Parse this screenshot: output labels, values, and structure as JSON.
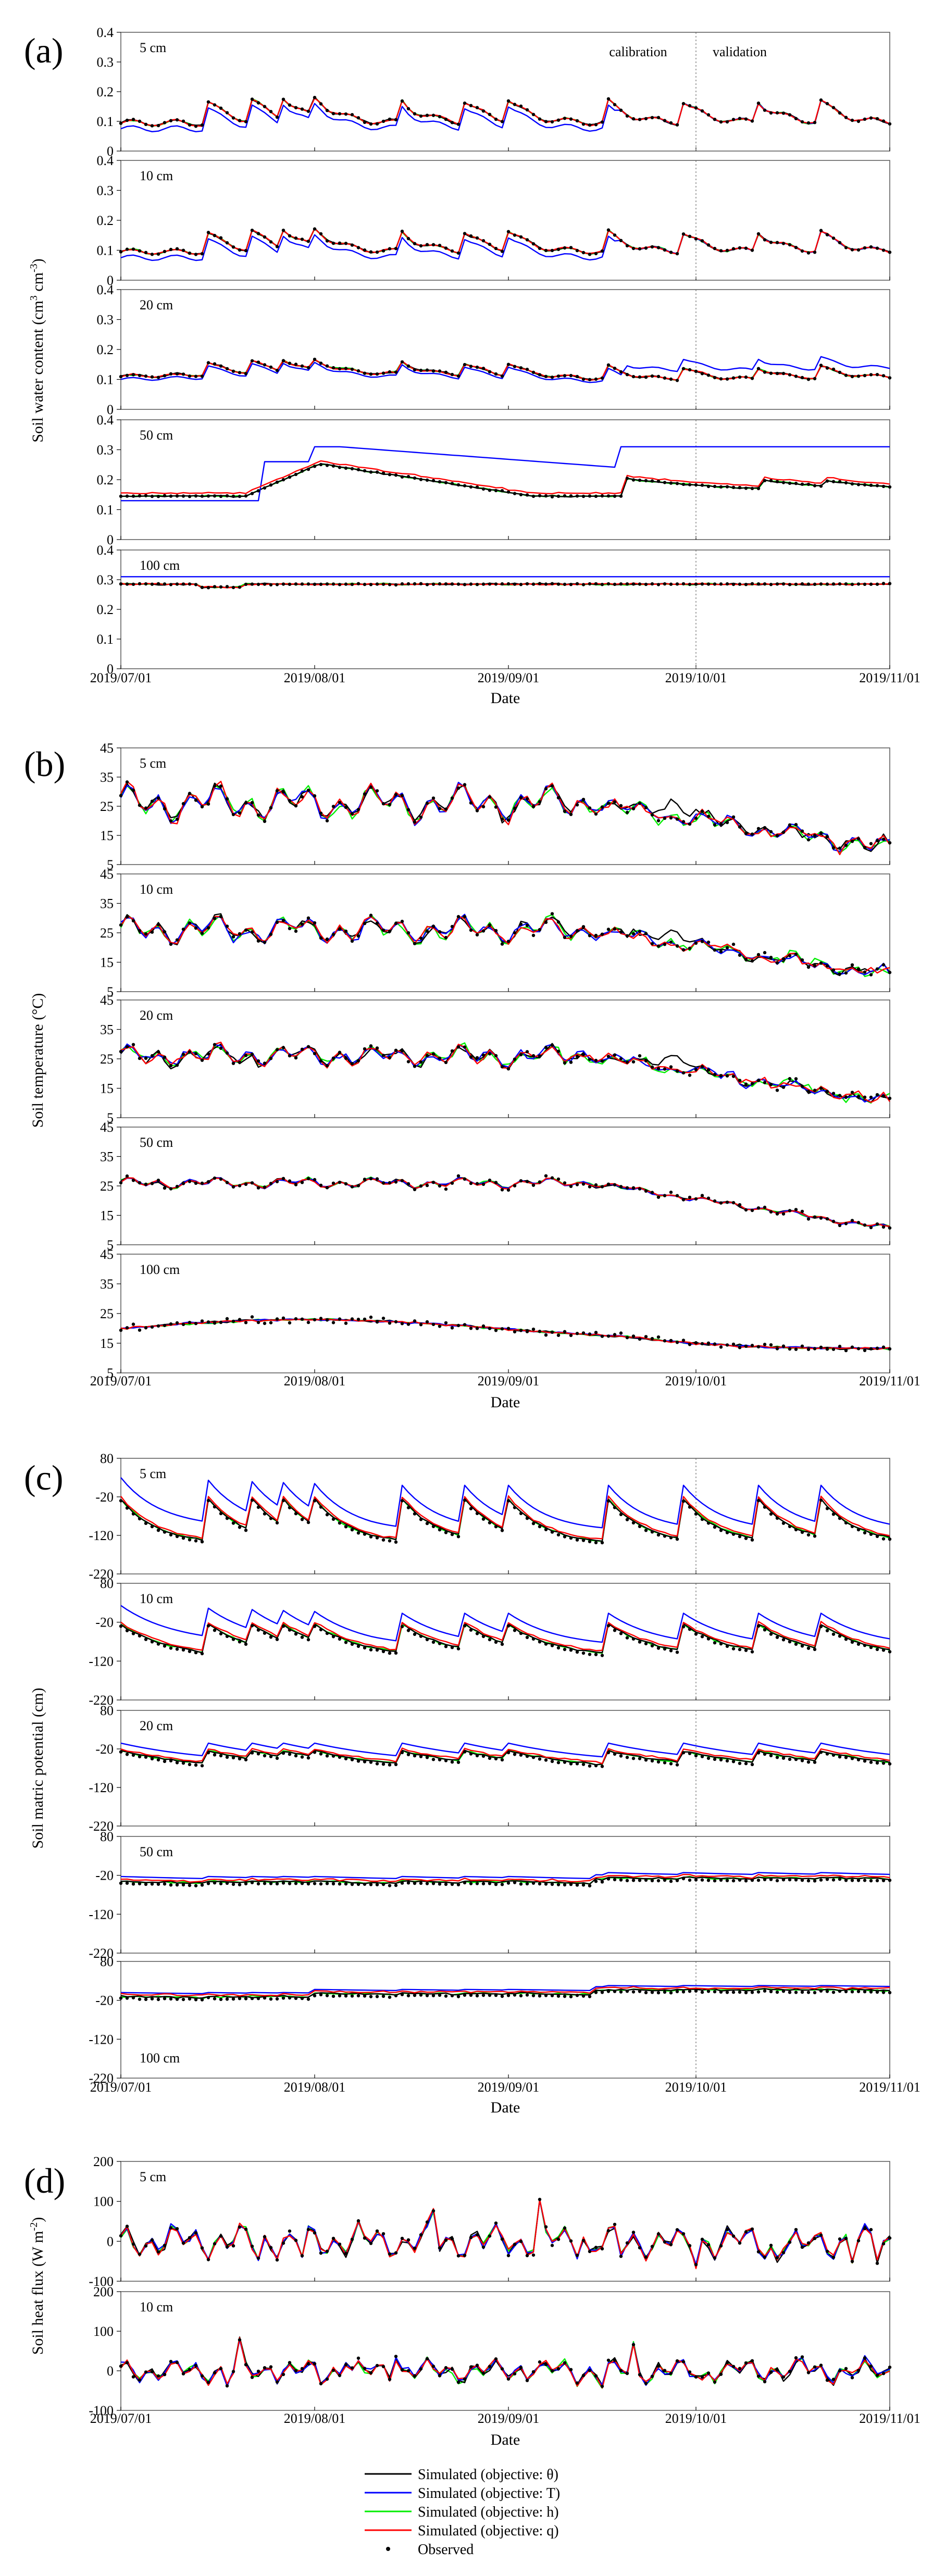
{
  "figure": {
    "x_tick_labels": [
      "2019/07/01",
      "2019/08/01",
      "2019/09/01",
      "2019/10/01",
      "2019/11/01"
    ],
    "x_axis_label": "Date",
    "divider_date_day": 92,
    "calibration_label": "calibration",
    "validation_label": "validation",
    "legend": [
      {
        "label": "Simulated (objective: θ)",
        "color": "#000000",
        "kind": "line"
      },
      {
        "label": "Simulated (objective: T)",
        "color": "#0000ff",
        "kind": "line"
      },
      {
        "label": "Simulated (objective: h)",
        "color": "#00ee00",
        "kind": "line"
      },
      {
        "label": "Simulated (objective: q)",
        "color": "#ff0000",
        "kind": "line"
      },
      {
        "label": "Observed",
        "color": "#000000",
        "kind": "dot"
      }
    ]
  },
  "chart_data": [
    {
      "type": "line",
      "panel": "(a)",
      "y_label": "Soil water content (cm3 cm-3)",
      "y_label_parts": [
        "Soil water content (cm",
        "3",
        " cm",
        "-3",
        ")"
      ],
      "depths": [
        "5 cm",
        "10 cm",
        "20 cm",
        "50 cm",
        "100 cm"
      ],
      "ylim": [
        0,
        0.4
      ],
      "yticks": [
        "0",
        "0.1",
        "0.2",
        "0.3",
        "0.4"
      ],
      "ytick_values": [
        0,
        0.1,
        0.2,
        0.3,
        0.4
      ],
      "x_days": [
        0,
        123
      ],
      "series_names": [
        "θ",
        "T",
        "h",
        "q",
        "Observed"
      ]
    },
    {
      "type": "line",
      "panel": "(b)",
      "y_label": "Soil temperature (°C)",
      "y_label_parts": [
        "Soil temperature (°C)"
      ],
      "depths": [
        "5 cm",
        "10 cm",
        "20 cm",
        "50 cm",
        "100 cm"
      ],
      "ylim": [
        5,
        45
      ],
      "yticks": [
        "5",
        "15",
        "25",
        "35",
        "45"
      ],
      "ytick_values": [
        5,
        15,
        25,
        35,
        45
      ],
      "x_days": [
        0,
        123
      ],
      "series_names": [
        "θ",
        "T",
        "h",
        "q",
        "Observed"
      ]
    },
    {
      "type": "line",
      "panel": "(c)",
      "y_label": "Soil matric potential (cm)",
      "y_label_parts": [
        "Soil matric potential (cm)"
      ],
      "depths": [
        "5 cm",
        "10 cm",
        "20 cm",
        "50 cm",
        "100 cm"
      ],
      "ylim": [
        -220,
        80
      ],
      "yticks": [
        "-220",
        "-120",
        "-20",
        "80"
      ],
      "ytick_values": [
        -220,
        -120,
        -20,
        80
      ],
      "x_days": [
        0,
        123
      ],
      "series_names": [
        "θ",
        "T",
        "h",
        "q",
        "Observed"
      ]
    },
    {
      "type": "line",
      "panel": "(d)",
      "y_label": "Soil heat flux (W m-2)",
      "y_label_parts": [
        "Soil heat flux (W m",
        "-2",
        ")"
      ],
      "depths": [
        "5 cm",
        "10 cm"
      ],
      "ylim": [
        -100,
        200
      ],
      "yticks": [
        "-100",
        "0",
        "100",
        "200"
      ],
      "ytick_values": [
        -100,
        0,
        100,
        200
      ],
      "x_days": [
        0,
        123
      ],
      "series_names": [
        "θ",
        "T",
        "h",
        "q",
        "Observed"
      ]
    }
  ]
}
